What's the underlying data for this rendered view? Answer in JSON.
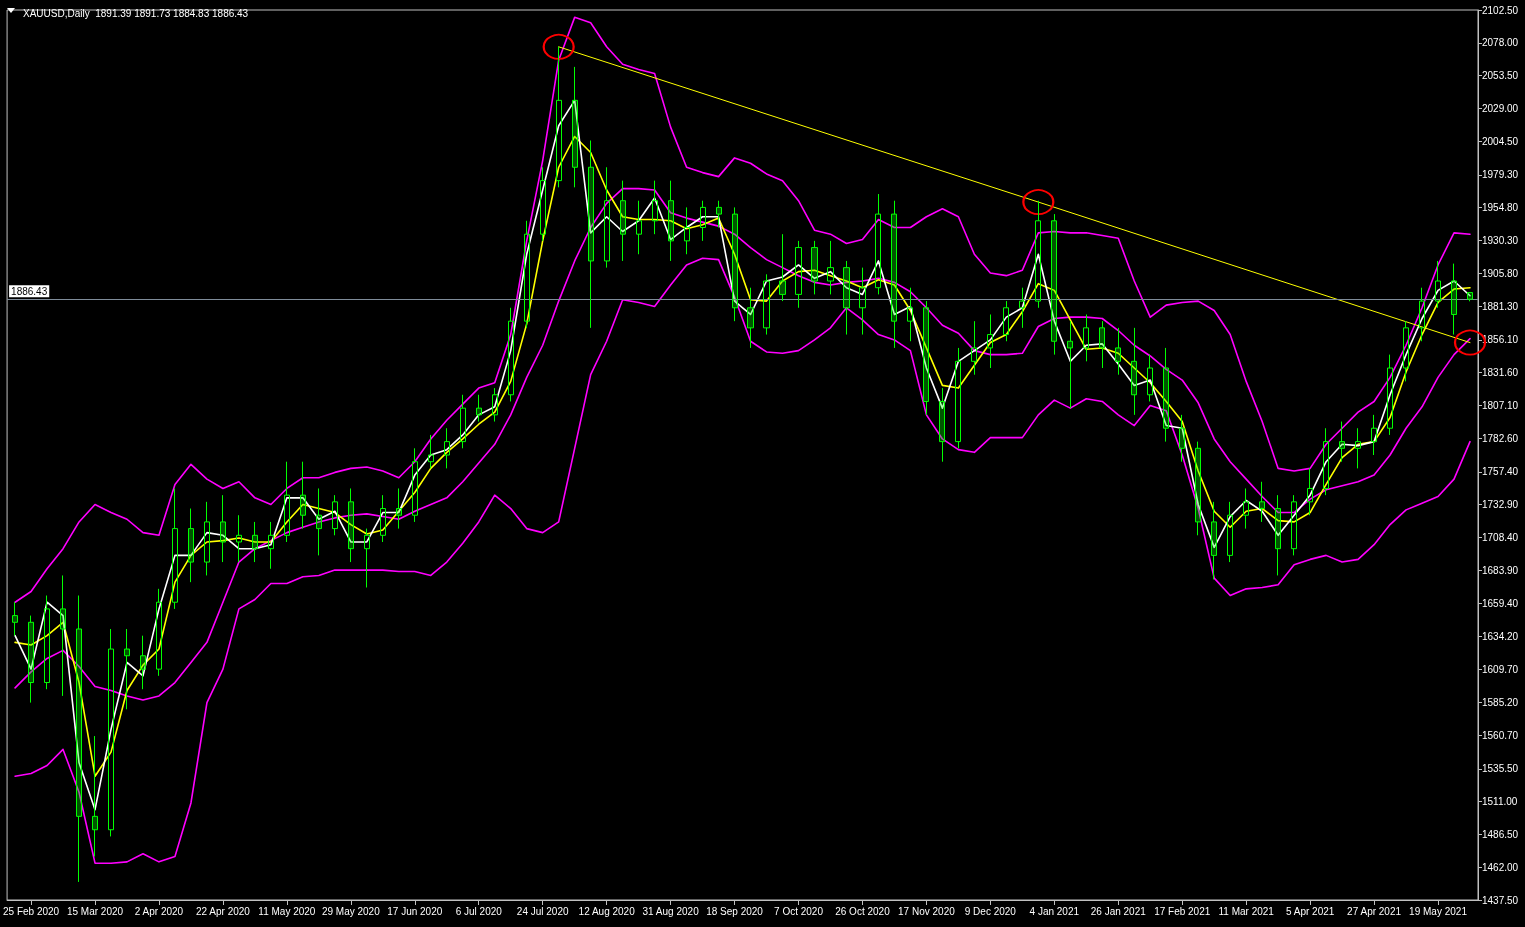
{
  "chart_data": {
    "type": "candlestick",
    "title": "XAUUSD,Daily  1891.39 1891.73 1884.83 1886.43",
    "categories": [
      null,
      "25 Feb 2020",
      null,
      null,
      null,
      "15 Mar 2020",
      null,
      null,
      null,
      "2 Apr 2020",
      null,
      null,
      null,
      "22 Apr 2020",
      null,
      null,
      null,
      "11 May 2020",
      null,
      null,
      null,
      "29 May 2020",
      null,
      null,
      null,
      "17 Jun 2020",
      null,
      null,
      null,
      "6 Jul 2020",
      null,
      null,
      null,
      "24 Jul 2020",
      null,
      null,
      null,
      "12 Aug 2020",
      null,
      null,
      null,
      "31 Aug 2020",
      null,
      null,
      null,
      "18 Sep 2020",
      null,
      null,
      null,
      "7 Oct 2020",
      null,
      null,
      null,
      "26 Oct 2020",
      null,
      null,
      null,
      "17 Nov 2020",
      null,
      null,
      null,
      "9 Dec 2020",
      null,
      null,
      null,
      "4 Jan 2021",
      null,
      null,
      null,
      "26 Jan 2021",
      null,
      null,
      null,
      "17 Feb 2021",
      null,
      null,
      null,
      "11 Mar 2021",
      null,
      null,
      null,
      "5 Apr 2021",
      null,
      null,
      null,
      "27 Apr 2021",
      null,
      null,
      null,
      "19 May 2021",
      null,
      null
    ],
    "ylim": [
      1437.5,
      2102.5
    ],
    "yticks": [
      {
        "value": 2102.5,
        "label": "2102.50"
      },
      {
        "value": 2078,
        "label": "2078.00"
      },
      {
        "value": 2053.5,
        "label": "2053.50"
      },
      {
        "value": 2029,
        "label": "2029.00"
      },
      {
        "value": 2004.5,
        "label": "2004.50"
      },
      {
        "value": 1979.3,
        "label": "1979.30"
      },
      {
        "value": 1954.8,
        "label": "1954.80"
      },
      {
        "value": 1930.3,
        "label": "1930.30"
      },
      {
        "value": 1905.8,
        "label": "1905.80"
      },
      {
        "value": 1881.3,
        "label": "1881.30"
      },
      {
        "value": 1856.1,
        "label": "1856.10"
      },
      {
        "value": 1831.6,
        "label": "1831.60"
      },
      {
        "value": 1807.1,
        "label": "1807.10"
      },
      {
        "value": 1782.6,
        "label": "1782.60"
      },
      {
        "value": 1757.4,
        "label": "1757.40"
      },
      {
        "value": 1732.9,
        "label": "1732.90"
      },
      {
        "value": 1708.4,
        "label": "1708.40"
      },
      {
        "value": 1683.9,
        "label": "1683.90"
      },
      {
        "value": 1659.4,
        "label": "1659.40"
      },
      {
        "value": 1634.2,
        "label": "1634.20"
      },
      {
        "value": 1609.7,
        "label": "1609.70"
      },
      {
        "value": 1585.2,
        "label": "1585.20"
      },
      {
        "value": 1560.7,
        "label": "1560.70"
      },
      {
        "value": 1535.5,
        "label": "1535.50"
      },
      {
        "value": 1511,
        "label": "1511.00"
      },
      {
        "value": 1486.5,
        "label": "1486.50"
      },
      {
        "value": 1462,
        "label": "1462.00"
      },
      {
        "value": 1437.5,
        "label": "1437.50"
      }
    ],
    "grid": false,
    "ref_lines": [
      {
        "axis": "y",
        "value": 1886.43,
        "label": "1886.43",
        "color": "#7f8c9a"
      }
    ],
    "series": [
      {
        "color": "#00ff00",
        "ohlc": [
          [
            1650,
            1660,
            1635,
            1645
          ],
          [
            1645,
            1650,
            1585,
            1600
          ],
          [
            1600,
            1665,
            1595,
            1655
          ],
          [
            1655,
            1680,
            1590,
            1640
          ],
          [
            1640,
            1665,
            1451,
            1500
          ],
          [
            1500,
            1560,
            1470,
            1490
          ],
          [
            1490,
            1640,
            1485,
            1625
          ],
          [
            1625,
            1640,
            1580,
            1620
          ],
          [
            1620,
            1635,
            1595,
            1610
          ],
          [
            1610,
            1670,
            1605,
            1660
          ],
          [
            1660,
            1745,
            1655,
            1715
          ],
          [
            1715,
            1730,
            1675,
            1690
          ],
          [
            1690,
            1735,
            1680,
            1720
          ],
          [
            1720,
            1740,
            1690,
            1705
          ],
          [
            1705,
            1725,
            1690,
            1710
          ],
          [
            1710,
            1720,
            1690,
            1700
          ],
          [
            1700,
            1720,
            1685,
            1710
          ],
          [
            1710,
            1765,
            1705,
            1740
          ],
          [
            1740,
            1765,
            1715,
            1725
          ],
          [
            1725,
            1745,
            1695,
            1715
          ],
          [
            1715,
            1740,
            1710,
            1735
          ],
          [
            1735,
            1745,
            1690,
            1700
          ],
          [
            1700,
            1715,
            1671,
            1710
          ],
          [
            1710,
            1740,
            1705,
            1730
          ],
          [
            1730,
            1745,
            1715,
            1725
          ],
          [
            1725,
            1775,
            1720,
            1765
          ],
          [
            1765,
            1785,
            1760,
            1770
          ],
          [
            1770,
            1790,
            1760,
            1780
          ],
          [
            1780,
            1815,
            1775,
            1805
          ],
          [
            1805,
            1815,
            1795,
            1800
          ],
          [
            1800,
            1820,
            1795,
            1815
          ],
          [
            1815,
            1880,
            1810,
            1870
          ],
          [
            1870,
            1945,
            1865,
            1935
          ],
          [
            1935,
            1985,
            1930,
            1975
          ],
          [
            1975,
            2075,
            1970,
            2035
          ],
          [
            2035,
            2060,
            1970,
            1985
          ],
          [
            1985,
            2005,
            1865,
            1915
          ],
          [
            1915,
            1985,
            1910,
            1960
          ],
          [
            1960,
            1975,
            1915,
            1935
          ],
          [
            1935,
            1960,
            1920,
            1945
          ],
          [
            1945,
            1975,
            1935,
            1960
          ],
          [
            1960,
            1975,
            1915,
            1930
          ],
          [
            1930,
            1955,
            1920,
            1940
          ],
          [
            1940,
            1960,
            1930,
            1955
          ],
          [
            1955,
            1960,
            1940,
            1950
          ],
          [
            1950,
            1955,
            1870,
            1880
          ],
          [
            1880,
            1895,
            1850,
            1865
          ],
          [
            1865,
            1905,
            1860,
            1900
          ],
          [
            1900,
            1935,
            1885,
            1890
          ],
          [
            1890,
            1930,
            1880,
            1925
          ],
          [
            1925,
            1930,
            1890,
            1900
          ],
          [
            1900,
            1930,
            1890,
            1910
          ],
          [
            1910,
            1915,
            1860,
            1880
          ],
          [
            1880,
            1910,
            1860,
            1895
          ],
          [
            1895,
            1965,
            1890,
            1950
          ],
          [
            1950,
            1960,
            1850,
            1870
          ],
          [
            1870,
            1895,
            1855,
            1880
          ],
          [
            1880,
            1885,
            1800,
            1810
          ],
          [
            1810,
            1820,
            1765,
            1780
          ],
          [
            1780,
            1850,
            1775,
            1840
          ],
          [
            1840,
            1870,
            1830,
            1850
          ],
          [
            1850,
            1875,
            1835,
            1860
          ],
          [
            1860,
            1885,
            1855,
            1880
          ],
          [
            1880,
            1895,
            1865,
            1885
          ],
          [
            1885,
            1960,
            1880,
            1945
          ],
          [
            1945,
            1950,
            1845,
            1855
          ],
          [
            1855,
            1870,
            1805,
            1850
          ],
          [
            1850,
            1875,
            1840,
            1865
          ],
          [
            1865,
            1870,
            1835,
            1850
          ],
          [
            1850,
            1865,
            1830,
            1840
          ],
          [
            1840,
            1865,
            1800,
            1815
          ],
          [
            1815,
            1845,
            1810,
            1835
          ],
          [
            1835,
            1850,
            1780,
            1790
          ],
          [
            1790,
            1800,
            1765,
            1775
          ],
          [
            1775,
            1780,
            1710,
            1720
          ],
          [
            1720,
            1735,
            1677,
            1695
          ],
          [
            1695,
            1735,
            1690,
            1725
          ],
          [
            1725,
            1745,
            1715,
            1735
          ],
          [
            1735,
            1750,
            1720,
            1730
          ],
          [
            1730,
            1740,
            1680,
            1700
          ],
          [
            1700,
            1740,
            1695,
            1735
          ],
          [
            1735,
            1760,
            1725,
            1745
          ],
          [
            1745,
            1790,
            1740,
            1780
          ],
          [
            1780,
            1795,
            1765,
            1775
          ],
          [
            1775,
            1790,
            1760,
            1780
          ],
          [
            1780,
            1800,
            1770,
            1790
          ],
          [
            1790,
            1845,
            1785,
            1835
          ],
          [
            1835,
            1870,
            1825,
            1865
          ],
          [
            1865,
            1895,
            1855,
            1885
          ],
          [
            1885,
            1915,
            1880,
            1900
          ],
          [
            1900,
            1913,
            1860,
            1875
          ],
          [
            1891.39,
            1891.73,
            1884.83,
            1886.43
          ]
        ]
      },
      {
        "type": "line",
        "color": "#ff00ff",
        "values": [
          1660,
          1668,
          1685,
          1700,
          1720,
          1733,
          1727,
          1722,
          1712,
          1710,
          1748,
          1763,
          1752,
          1745,
          1750,
          1738,
          1733,
          1745,
          1753,
          1753,
          1757,
          1760,
          1761,
          1758,
          1753,
          1765,
          1782,
          1796,
          1808,
          1820,
          1824,
          1860,
          1930,
          1990,
          2065,
          2097,
          2093,
          2075,
          2062,
          2058,
          2055,
          2015,
          1985,
          1981,
          1978,
          1992,
          1988,
          1980,
          1975,
          1960,
          1938,
          1935,
          1928,
          1931,
          1946,
          1940,
          1940,
          1948,
          1954,
          1948,
          1920,
          1906,
          1904,
          1908,
          1936,
          1937,
          1936,
          1936,
          1934,
          1932,
          1900,
          1873,
          1882,
          1884,
          1885,
          1878,
          1860,
          1825,
          1795,
          1760,
          1758,
          1760,
          1778,
          1790,
          1802,
          1810,
          1828,
          1852,
          1880,
          1912,
          1936,
          1935
        ]
      },
      {
        "type": "line",
        "color": "#ff00ff",
        "values": [
          1596,
          1608,
          1618,
          1624,
          1612,
          1597,
          1594,
          1590,
          1587,
          1590,
          1600,
          1615,
          1630,
          1660,
          1690,
          1700,
          1706,
          1712,
          1716,
          1720,
          1723,
          1725,
          1726,
          1724,
          1722,
          1728,
          1733,
          1738,
          1750,
          1764,
          1778,
          1800,
          1828,
          1852,
          1885,
          1915,
          1940,
          1958,
          1969,
          1969,
          1968,
          1951,
          1947,
          1944,
          1941,
          1935,
          1925,
          1916,
          1910,
          1904,
          1899,
          1897,
          1899,
          1900,
          1902,
          1899,
          1892,
          1880,
          1867,
          1861,
          1848,
          1845,
          1845,
          1846,
          1866,
          1872,
          1873,
          1873,
          1872,
          1863,
          1852,
          1844,
          1834,
          1826,
          1809,
          1782,
          1765,
          1752,
          1739,
          1727,
          1727,
          1737,
          1744,
          1747,
          1750,
          1755,
          1770,
          1790,
          1806,
          1828,
          1845,
          1857
        ]
      },
      {
        "type": "line",
        "color": "#ff00ff",
        "values": [
          1530,
          1532,
          1538,
          1550,
          1518,
          1465,
          1465,
          1466,
          1472,
          1466,
          1470,
          1510,
          1585,
          1610,
          1655,
          1662,
          1674,
          1674,
          1679,
          1680,
          1684,
          1684,
          1684,
          1684,
          1683,
          1683,
          1680,
          1690,
          1704,
          1720,
          1740,
          1730,
          1715,
          1712,
          1720,
          1775,
          1830,
          1855,
          1886,
          1884,
          1881,
          1897,
          1912,
          1917,
          1916,
          1888,
          1855,
          1847,
          1846,
          1848,
          1856,
          1865,
          1880,
          1871,
          1860,
          1856,
          1848,
          1800,
          1782,
          1774,
          1772,
          1783,
          1783,
          1783,
          1800,
          1811,
          1805,
          1812,
          1810,
          1800,
          1792,
          1807,
          1803,
          1770,
          1730,
          1678,
          1665,
          1670,
          1671,
          1673,
          1688,
          1692,
          1695,
          1690,
          1692,
          1703,
          1718,
          1729,
          1734,
          1739,
          1752,
          1780
        ]
      },
      {
        "type": "line",
        "color": "#ffff00",
        "values": [
          1630,
          1628,
          1635,
          1645,
          1600,
          1530,
          1548,
          1594,
          1613,
          1625,
          1675,
          1695,
          1705,
          1706,
          1708,
          1705,
          1705,
          1720,
          1733,
          1730,
          1727,
          1718,
          1711,
          1714,
          1728,
          1742,
          1760,
          1772,
          1782,
          1793,
          1802,
          1825,
          1868,
          1930,
          1985,
          2008,
          1996,
          1968,
          1948,
          1946,
          1946,
          1945,
          1939,
          1942,
          1947,
          1920,
          1886,
          1885,
          1900,
          1907,
          1908,
          1904,
          1900,
          1895,
          1901,
          1897,
          1878,
          1850,
          1822,
          1820,
          1837,
          1854,
          1860,
          1877,
          1898,
          1893,
          1871,
          1849,
          1850,
          1846,
          1835,
          1824,
          1810,
          1795,
          1758,
          1728,
          1716,
          1728,
          1730,
          1721,
          1720,
          1727,
          1748,
          1768,
          1778,
          1780,
          1798,
          1832,
          1860,
          1884,
          1894,
          1895
        ]
      },
      {
        "type": "line",
        "color": "#ffffff",
        "values": [
          1635,
          1610,
          1660,
          1650,
          1540,
          1505,
          1565,
          1615,
          1605,
          1655,
          1695,
          1695,
          1712,
          1710,
          1700,
          1700,
          1703,
          1738,
          1738,
          1722,
          1728,
          1705,
          1705,
          1727,
          1727,
          1755,
          1770,
          1774,
          1785,
          1800,
          1806,
          1848,
          1920,
          1968,
          2016,
          2035,
          1936,
          1948,
          1937,
          1945,
          1962,
          1931,
          1940,
          1948,
          1948,
          1885,
          1875,
          1900,
          1903,
          1912,
          1902,
          1907,
          1895,
          1890,
          1915,
          1875,
          1881,
          1835,
          1805,
          1840,
          1848,
          1856,
          1873,
          1880,
          1920,
          1870,
          1840,
          1852,
          1853,
          1838,
          1822,
          1826,
          1792,
          1790,
          1733,
          1701,
          1724,
          1736,
          1728,
          1710,
          1725,
          1740,
          1765,
          1778,
          1777,
          1780,
          1815,
          1845,
          1872,
          1893,
          1900,
          1889
        ]
      },
      {
        "type": "line",
        "color": "#ffff00",
        "marker": "circle",
        "values": [
          null,
          null,
          null,
          null,
          null,
          null,
          null,
          null,
          null,
          null,
          null,
          null,
          null,
          null,
          null,
          null,
          null,
          null,
          null,
          null,
          null,
          null,
          null,
          null,
          null,
          null,
          null,
          null,
          null,
          null,
          null,
          null,
          null,
          null,
          2075,
          null,
          null,
          null,
          null,
          null,
          null,
          null,
          null,
          null,
          null,
          null,
          null,
          null,
          null,
          null,
          null,
          null,
          null,
          null,
          null,
          null,
          null,
          null,
          null,
          null,
          null,
          null,
          null,
          null,
          1959,
          null,
          null,
          null,
          null,
          null,
          null,
          null,
          null,
          null,
          null,
          null,
          null,
          null,
          null,
          null,
          null,
          null,
          null,
          null,
          null,
          null,
          null,
          null,
          null,
          null,
          null,
          1854
        ]
      }
    ]
  }
}
